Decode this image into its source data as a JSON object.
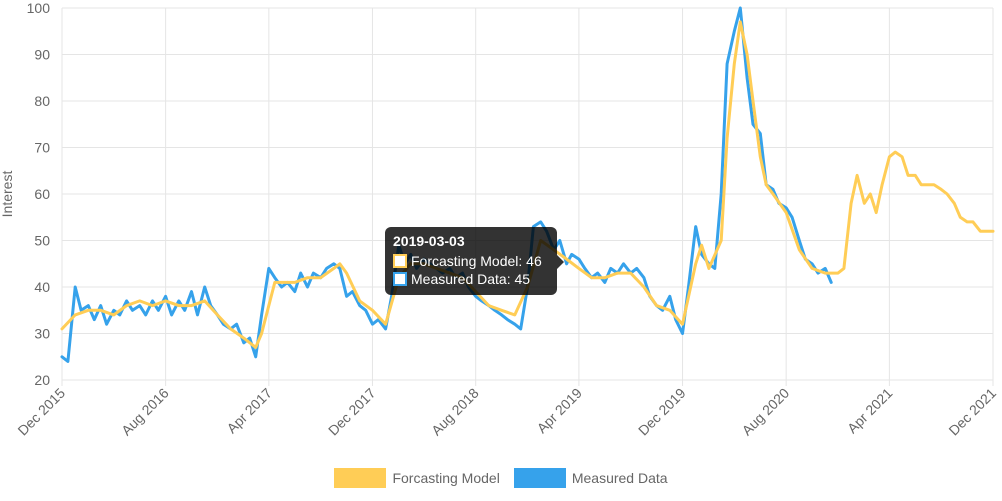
{
  "chart_data": {
    "type": "line",
    "ylabel": "Interest",
    "ylim": [
      20,
      100
    ],
    "yticks": [
      20,
      30,
      40,
      50,
      60,
      70,
      80,
      90,
      100
    ],
    "xlim": [
      "2015-12-01",
      "2021-12-01"
    ],
    "xticks": [
      {
        "date": "2015-12-01",
        "label": "Dec 2015"
      },
      {
        "date": "2016-08-01",
        "label": "Aug 2016"
      },
      {
        "date": "2017-04-01",
        "label": "Apr 2017"
      },
      {
        "date": "2017-12-01",
        "label": "Dec 2017"
      },
      {
        "date": "2018-08-01",
        "label": "Aug 2018"
      },
      {
        "date": "2019-04-01",
        "label": "Apr 2019"
      },
      {
        "date": "2019-12-01",
        "label": "Dec 2019"
      },
      {
        "date": "2020-08-01",
        "label": "Aug 2020"
      },
      {
        "date": "2021-04-01",
        "label": "Apr 2021"
      },
      {
        "date": "2021-12-01",
        "label": "Dec 2021"
      }
    ],
    "grid": true,
    "legend_position": "bottom",
    "series": [
      {
        "name": "Measured Data",
        "color": "#36a2eb",
        "points": [
          [
            "2015-12-01",
            25
          ],
          [
            "2015-12-15",
            24
          ],
          [
            "2016-01-01",
            40
          ],
          [
            "2016-01-15",
            35
          ],
          [
            "2016-02-01",
            36
          ],
          [
            "2016-02-15",
            33
          ],
          [
            "2016-03-01",
            36
          ],
          [
            "2016-03-15",
            32
          ],
          [
            "2016-04-01",
            35
          ],
          [
            "2016-04-15",
            34
          ],
          [
            "2016-05-01",
            37
          ],
          [
            "2016-05-15",
            35
          ],
          [
            "2016-06-01",
            36
          ],
          [
            "2016-06-15",
            34
          ],
          [
            "2016-07-01",
            37
          ],
          [
            "2016-07-15",
            35
          ],
          [
            "2016-08-01",
            38
          ],
          [
            "2016-08-15",
            34
          ],
          [
            "2016-09-01",
            37
          ],
          [
            "2016-09-15",
            35
          ],
          [
            "2016-10-01",
            39
          ],
          [
            "2016-10-15",
            34
          ],
          [
            "2016-11-01",
            40
          ],
          [
            "2016-11-15",
            36
          ],
          [
            "2016-12-01",
            34
          ],
          [
            "2016-12-15",
            32
          ],
          [
            "2017-01-01",
            31
          ],
          [
            "2017-01-15",
            32
          ],
          [
            "2017-02-01",
            28
          ],
          [
            "2017-02-15",
            29
          ],
          [
            "2017-03-01",
            25
          ],
          [
            "2017-03-15",
            34
          ],
          [
            "2017-04-01",
            44
          ],
          [
            "2017-04-15",
            42
          ],
          [
            "2017-05-01",
            40
          ],
          [
            "2017-05-15",
            41
          ],
          [
            "2017-06-01",
            39
          ],
          [
            "2017-06-15",
            43
          ],
          [
            "2017-07-01",
            40
          ],
          [
            "2017-07-15",
            43
          ],
          [
            "2017-08-01",
            42
          ],
          [
            "2017-08-15",
            44
          ],
          [
            "2017-09-01",
            45
          ],
          [
            "2017-09-15",
            44
          ],
          [
            "2017-10-01",
            38
          ],
          [
            "2017-10-15",
            39
          ],
          [
            "2017-11-01",
            36
          ],
          [
            "2017-11-15",
            35
          ],
          [
            "2017-12-01",
            32
          ],
          [
            "2017-12-15",
            33
          ],
          [
            "2018-01-01",
            31
          ],
          [
            "2018-01-15",
            38
          ],
          [
            "2018-02-01",
            49
          ],
          [
            "2018-02-15",
            45
          ],
          [
            "2018-03-01",
            47
          ],
          [
            "2018-03-15",
            44
          ],
          [
            "2018-04-01",
            46
          ],
          [
            "2018-04-15",
            45
          ],
          [
            "2018-05-01",
            44
          ],
          [
            "2018-05-15",
            43
          ],
          [
            "2018-06-01",
            44
          ],
          [
            "2018-06-15",
            42
          ],
          [
            "2018-07-01",
            43
          ],
          [
            "2018-07-15",
            40
          ],
          [
            "2018-08-01",
            38
          ],
          [
            "2018-08-15",
            37
          ],
          [
            "2018-09-01",
            36
          ],
          [
            "2018-09-15",
            35
          ],
          [
            "2018-10-01",
            34
          ],
          [
            "2018-10-15",
            33
          ],
          [
            "2018-11-01",
            32
          ],
          [
            "2018-11-15",
            31
          ],
          [
            "2018-12-01",
            40
          ],
          [
            "2018-12-15",
            53
          ],
          [
            "2019-01-01",
            54
          ],
          [
            "2019-01-15",
            52
          ],
          [
            "2019-02-01",
            48
          ],
          [
            "2019-02-15",
            50
          ],
          [
            "2019-03-03",
            45
          ],
          [
            "2019-03-15",
            47
          ],
          [
            "2019-04-01",
            46
          ],
          [
            "2019-04-15",
            44
          ],
          [
            "2019-05-01",
            42
          ],
          [
            "2019-05-15",
            43
          ],
          [
            "2019-06-01",
            41
          ],
          [
            "2019-06-15",
            44
          ],
          [
            "2019-07-01",
            43
          ],
          [
            "2019-07-15",
            45
          ],
          [
            "2019-08-01",
            43
          ],
          [
            "2019-08-15",
            44
          ],
          [
            "2019-09-01",
            42
          ],
          [
            "2019-09-15",
            38
          ],
          [
            "2019-10-01",
            36
          ],
          [
            "2019-10-15",
            35
          ],
          [
            "2019-11-01",
            38
          ],
          [
            "2019-11-15",
            33
          ],
          [
            "2019-12-01",
            30
          ],
          [
            "2019-12-15",
            40
          ],
          [
            "2020-01-01",
            53
          ],
          [
            "2020-01-15",
            47
          ],
          [
            "2020-02-01",
            45
          ],
          [
            "2020-02-15",
            44
          ],
          [
            "2020-03-01",
            60
          ],
          [
            "2020-03-15",
            88
          ],
          [
            "2020-04-01",
            95
          ],
          [
            "2020-04-15",
            100
          ],
          [
            "2020-05-01",
            85
          ],
          [
            "2020-05-15",
            75
          ],
          [
            "2020-06-01",
            73
          ],
          [
            "2020-06-15",
            62
          ],
          [
            "2020-07-01",
            61
          ],
          [
            "2020-07-15",
            58
          ],
          [
            "2020-08-01",
            57
          ],
          [
            "2020-08-15",
            55
          ],
          [
            "2020-09-01",
            50
          ],
          [
            "2020-09-15",
            46
          ],
          [
            "2020-10-01",
            45
          ],
          [
            "2020-10-15",
            43
          ],
          [
            "2020-11-01",
            44
          ],
          [
            "2020-11-15",
            41
          ]
        ]
      },
      {
        "name": "Forcasting Model",
        "color": "#ffcd56",
        "points": [
          [
            "2015-12-01",
            31
          ],
          [
            "2016-01-01",
            34
          ],
          [
            "2016-02-01",
            35
          ],
          [
            "2016-03-01",
            35
          ],
          [
            "2016-04-01",
            34
          ],
          [
            "2016-05-01",
            36
          ],
          [
            "2016-06-01",
            37
          ],
          [
            "2016-07-01",
            36
          ],
          [
            "2016-08-01",
            37
          ],
          [
            "2016-09-01",
            36
          ],
          [
            "2016-10-01",
            36
          ],
          [
            "2016-11-01",
            37
          ],
          [
            "2016-12-01",
            34
          ],
          [
            "2017-01-01",
            31
          ],
          [
            "2017-02-01",
            29
          ],
          [
            "2017-03-01",
            27
          ],
          [
            "2017-03-15",
            30
          ],
          [
            "2017-04-01",
            36
          ],
          [
            "2017-04-15",
            41
          ],
          [
            "2017-05-01",
            41
          ],
          [
            "2017-06-01",
            41
          ],
          [
            "2017-07-01",
            42
          ],
          [
            "2017-08-01",
            42
          ],
          [
            "2017-09-01",
            44
          ],
          [
            "2017-09-15",
            45
          ],
          [
            "2017-10-01",
            43
          ],
          [
            "2017-11-01",
            37
          ],
          [
            "2017-12-01",
            35
          ],
          [
            "2018-01-01",
            32
          ],
          [
            "2018-02-01",
            42
          ],
          [
            "2018-03-01",
            45
          ],
          [
            "2018-04-01",
            45
          ],
          [
            "2018-05-01",
            44
          ],
          [
            "2018-06-01",
            43
          ],
          [
            "2018-07-01",
            42
          ],
          [
            "2018-08-01",
            39
          ],
          [
            "2018-09-01",
            36
          ],
          [
            "2018-10-01",
            35
          ],
          [
            "2018-11-01",
            34
          ],
          [
            "2018-12-01",
            40
          ],
          [
            "2019-01-01",
            50
          ],
          [
            "2019-02-01",
            48
          ],
          [
            "2019-03-03",
            46
          ],
          [
            "2019-04-01",
            44
          ],
          [
            "2019-05-01",
            42
          ],
          [
            "2019-06-01",
            42
          ],
          [
            "2019-07-01",
            43
          ],
          [
            "2019-08-01",
            43
          ],
          [
            "2019-09-01",
            40
          ],
          [
            "2019-10-01",
            36
          ],
          [
            "2019-11-01",
            35
          ],
          [
            "2019-12-01",
            32
          ],
          [
            "2020-01-01",
            45
          ],
          [
            "2020-01-15",
            49
          ],
          [
            "2020-02-01",
            44
          ],
          [
            "2020-03-01",
            50
          ],
          [
            "2020-03-15",
            72
          ],
          [
            "2020-04-01",
            88
          ],
          [
            "2020-04-15",
            97
          ],
          [
            "2020-05-01",
            90
          ],
          [
            "2020-05-15",
            80
          ],
          [
            "2020-06-01",
            68
          ],
          [
            "2020-06-15",
            62
          ],
          [
            "2020-07-01",
            60
          ],
          [
            "2020-08-01",
            56
          ],
          [
            "2020-09-01",
            48
          ],
          [
            "2020-10-01",
            44
          ],
          [
            "2020-11-01",
            43
          ],
          [
            "2020-12-01",
            43
          ],
          [
            "2020-12-15",
            44
          ],
          [
            "2021-01-01",
            58
          ],
          [
            "2021-01-15",
            64
          ],
          [
            "2021-02-01",
            58
          ],
          [
            "2021-02-15",
            60
          ],
          [
            "2021-03-01",
            56
          ],
          [
            "2021-03-15",
            62
          ],
          [
            "2021-04-01",
            68
          ],
          [
            "2021-04-15",
            69
          ],
          [
            "2021-05-01",
            68
          ],
          [
            "2021-05-15",
            64
          ],
          [
            "2021-06-01",
            64
          ],
          [
            "2021-06-15",
            62
          ],
          [
            "2021-07-01",
            62
          ],
          [
            "2021-07-15",
            62
          ],
          [
            "2021-08-01",
            61
          ],
          [
            "2021-08-15",
            60
          ],
          [
            "2021-09-01",
            58
          ],
          [
            "2021-09-15",
            55
          ],
          [
            "2021-10-01",
            54
          ],
          [
            "2021-10-15",
            54
          ],
          [
            "2021-11-01",
            52
          ],
          [
            "2021-12-01",
            52
          ]
        ]
      }
    ],
    "legend": [
      {
        "label": "Forcasting Model",
        "color": "#ffcd56"
      },
      {
        "label": "Measured Data",
        "color": "#36a2eb"
      }
    ],
    "tooltip": {
      "title": "2019-03-03",
      "rows": [
        {
          "text": "Forcasting Model: 46",
          "color": "#ffcd56"
        },
        {
          "text": "Measured Data: 45",
          "color": "#36a2eb"
        }
      ]
    }
  }
}
